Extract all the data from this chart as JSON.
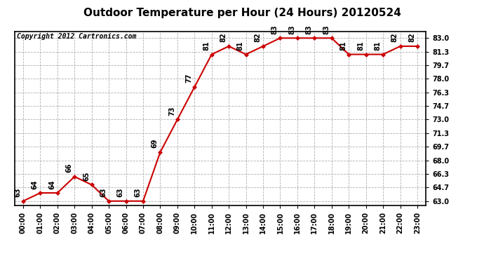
{
  "title": "Outdoor Temperature per Hour (24 Hours) 20120524",
  "copyright_text": "Copyright 2012 Cartronics.com",
  "hours": [
    "00:00",
    "01:00",
    "02:00",
    "03:00",
    "04:00",
    "05:00",
    "06:00",
    "07:00",
    "08:00",
    "09:00",
    "10:00",
    "11:00",
    "12:00",
    "13:00",
    "14:00",
    "15:00",
    "16:00",
    "17:00",
    "18:00",
    "19:00",
    "20:00",
    "21:00",
    "22:00",
    "23:00"
  ],
  "temps": [
    63,
    64,
    64,
    66,
    65,
    63,
    63,
    63,
    69,
    73,
    77,
    81,
    82,
    81,
    82,
    83,
    83,
    83,
    83,
    81,
    81,
    81,
    82,
    82
  ],
  "line_color": "#cc0000",
  "marker_color": "#cc0000",
  "bg_color": "#ffffff",
  "grid_color": "#b0b0b0",
  "yticks": [
    63.0,
    64.7,
    66.3,
    68.0,
    69.7,
    71.3,
    73.0,
    74.7,
    76.3,
    78.0,
    79.7,
    81.3,
    83.0
  ],
  "ylim": [
    62.5,
    83.8
  ],
  "title_fontsize": 11,
  "label_fontsize": 7,
  "annotation_fontsize": 7,
  "copyright_fontsize": 7
}
